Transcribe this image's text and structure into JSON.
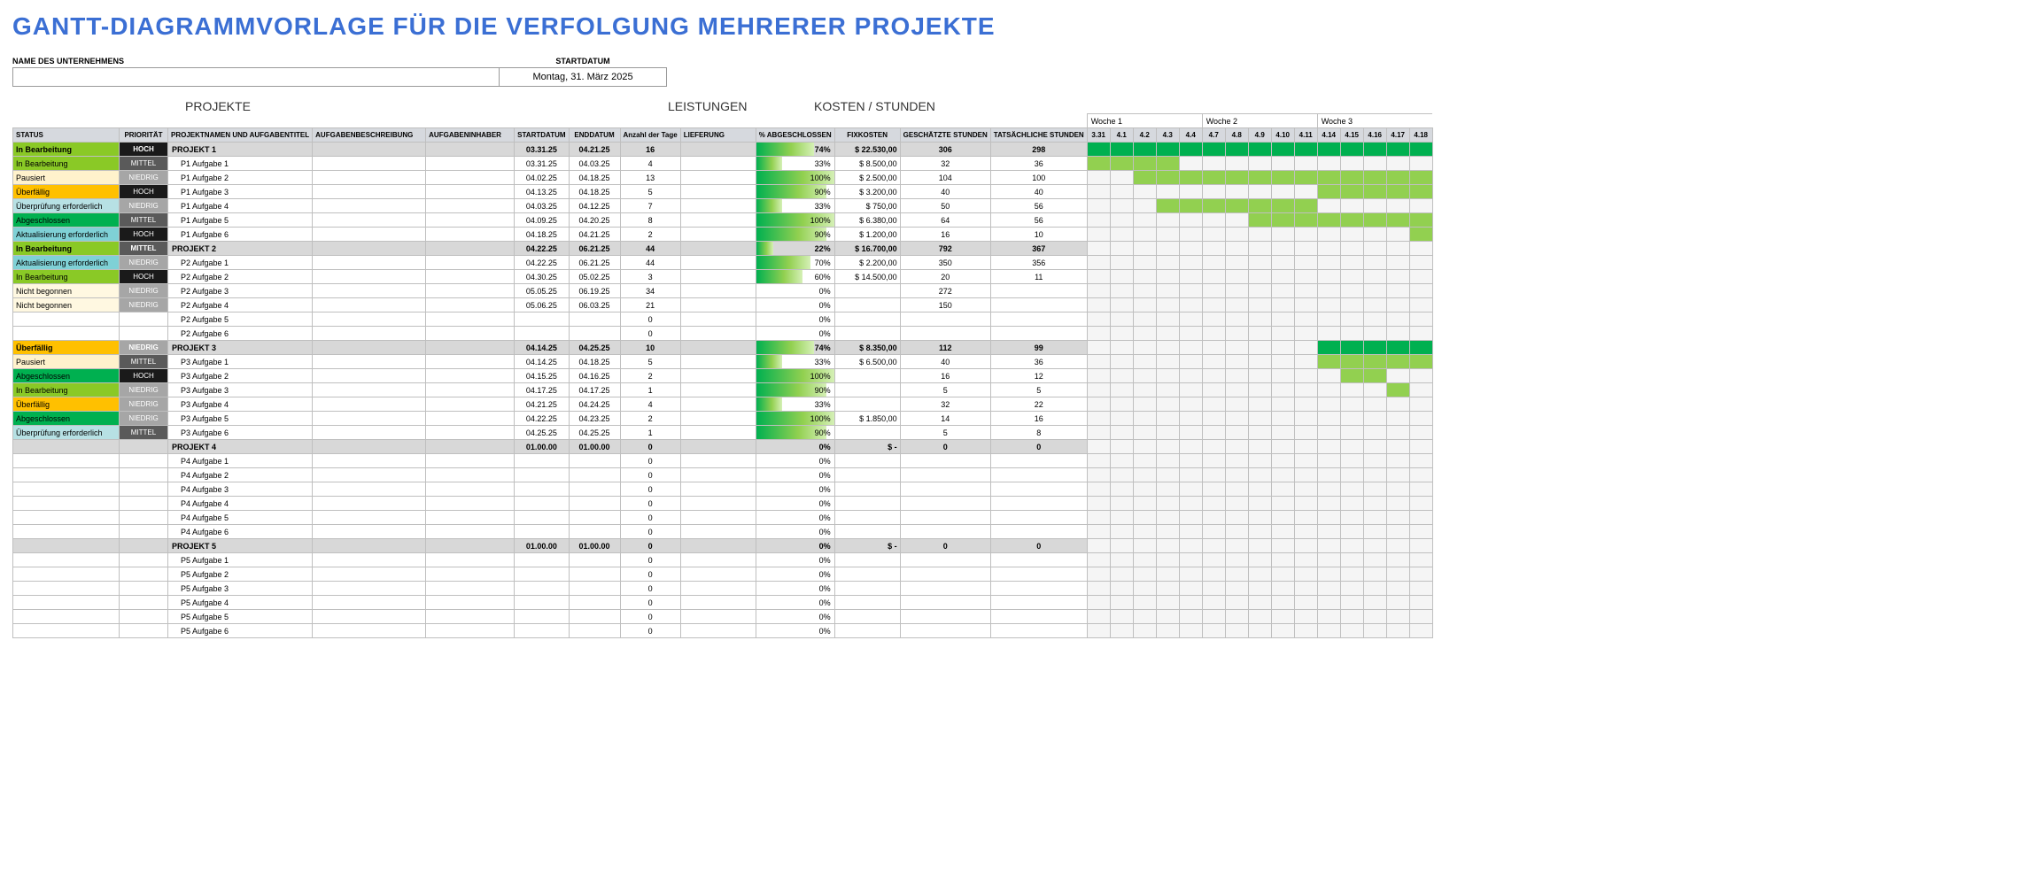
{
  "title": "GANTT-DIAGRAMMVORLAGE FÜR DIE VERFOLGUNG MEHRERER PROJEKTE",
  "company_label": "NAME DES UNTERNEHMENS",
  "startdate_label": "STARTDATUM",
  "startdate_value": "Montag, 31. März 2025",
  "sections": {
    "projects": "PROJEKTE",
    "deliv": "LEISTUNGEN",
    "cost": "KOSTEN / STUNDEN"
  },
  "headers": {
    "status": "STATUS",
    "prio": "PRIORITÄT",
    "title": "PROJEKTNAMEN UND AUFGABENTITEL",
    "desc": "AUFGABENBESCHREIBUNG",
    "owner": "AUFGABENINHABER",
    "start": "STARTDATUM",
    "end": "ENDDATUM",
    "days": "Anzahl der Tage",
    "deliv": "LIEFERUNG",
    "pct": "% ABGESCHLOSSEN",
    "cost": "FIXKOSTEN",
    "est": "GESCHÄTZTE STUNDEN",
    "act": "TATSÄCHLICHE STUNDEN"
  },
  "status_colors": {
    "In Bearbeitung": "#8ac926",
    "Pausiert": "#fff2cc",
    "Überfällig": "#ffc000",
    "Überprüfung erforderlich": "#b7e1e4",
    "Abgeschlossen": "#00b050",
    "Aktualisierung erforderlich": "#7fd1d6",
    "Nicht begonnen": "#fff8e1"
  },
  "prio_colors": {
    "HOCH": "#1a1a1a",
    "MITTEL": "#5a5a5a",
    "NIEDRIG": "#a6a6a6"
  },
  "gantt_palette": {
    "project": "#00b050",
    "task_green": "#92d050",
    "task_dark": "#5fa832"
  },
  "weeks": [
    {
      "label": "Woche 1",
      "days": [
        "3.31",
        "4.1",
        "4.2",
        "4.3",
        "4.4"
      ]
    },
    {
      "label": "Woche 2",
      "days": [
        "4.7",
        "4.8",
        "4.9",
        "4.10",
        "4.11"
      ]
    },
    {
      "label": "Woche 3",
      "days": [
        "4.14",
        "4.15",
        "4.16",
        "4.17",
        "4.18"
      ]
    }
  ],
  "rows": [
    {
      "type": "project",
      "status": "In Bearbeitung",
      "prio": "HOCH",
      "title": "PROJEKT 1",
      "start": "03.31.25",
      "end": "04.21.25",
      "days": "16",
      "pct": 74,
      "cost": "$    22.530,00",
      "est": "306",
      "act": "298",
      "bar": [
        0,
        15,
        "project"
      ]
    },
    {
      "type": "task",
      "status": "In Bearbeitung",
      "prio": "MITTEL",
      "title": "P1 Aufgabe 1",
      "start": "03.31.25",
      "end": "04.03.25",
      "days": "4",
      "pct": 33,
      "cost": "$      8.500,00",
      "est": "32",
      "act": "36",
      "bar": [
        0,
        4,
        "task_green"
      ]
    },
    {
      "type": "task",
      "status": "Pausiert",
      "prio": "NIEDRIG",
      "title": "P1 Aufgabe 2",
      "start": "04.02.25",
      "end": "04.18.25",
      "days": "13",
      "pct": 100,
      "cost": "$      2.500,00",
      "est": "104",
      "act": "100",
      "bar": [
        2,
        15,
        "task_green"
      ]
    },
    {
      "type": "task",
      "status": "Überfällig",
      "prio": "HOCH",
      "title": "P1 Aufgabe 3",
      "start": "04.13.25",
      "end": "04.18.25",
      "days": "5",
      "pct": 90,
      "cost": "$      3.200,00",
      "est": "40",
      "act": "40",
      "bar": [
        10,
        15,
        "task_green"
      ]
    },
    {
      "type": "task",
      "status": "Überprüfung erforderlich",
      "prio": "NIEDRIG",
      "title": "P1 Aufgabe 4",
      "start": "04.03.25",
      "end": "04.12.25",
      "days": "7",
      "pct": 33,
      "cost": "$         750,00",
      "est": "50",
      "act": "56",
      "bar": [
        3,
        10,
        "task_green"
      ]
    },
    {
      "type": "task",
      "status": "Abgeschlossen",
      "prio": "MITTEL",
      "title": "P1 Aufgabe 5",
      "start": "04.09.25",
      "end": "04.20.25",
      "days": "8",
      "pct": 100,
      "cost": "$      6.380,00",
      "est": "64",
      "act": "56",
      "bar": [
        7,
        15,
        "task_green"
      ]
    },
    {
      "type": "task",
      "status": "Aktualisierung erforderlich",
      "prio": "HOCH",
      "title": "P1 Aufgabe 6",
      "start": "04.18.25",
      "end": "04.21.25",
      "days": "2",
      "pct": 90,
      "cost": "$      1.200,00",
      "est": "16",
      "act": "10",
      "bar": [
        14,
        15,
        "task_green"
      ]
    },
    {
      "type": "project",
      "status": "In Bearbeitung",
      "prio": "MITTEL",
      "title": "PROJEKT 2",
      "start": "04.22.25",
      "end": "06.21.25",
      "days": "44",
      "pct": 22,
      "cost": "$    16.700,00",
      "est": "792",
      "act": "367",
      "bar": null
    },
    {
      "type": "task",
      "status": "Aktualisierung erforderlich",
      "prio": "NIEDRIG",
      "title": "P2 Aufgabe 1",
      "start": "04.22.25",
      "end": "06.21.25",
      "days": "44",
      "pct": 70,
      "cost": "$      2.200,00",
      "est": "350",
      "act": "356",
      "bar": null
    },
    {
      "type": "task",
      "status": "In Bearbeitung",
      "prio": "HOCH",
      "title": "P2 Aufgabe 2",
      "start": "04.30.25",
      "end": "05.02.25",
      "days": "3",
      "pct": 60,
      "cost": "$    14.500,00",
      "est": "20",
      "act": "11",
      "bar": null
    },
    {
      "type": "task",
      "status": "Nicht begonnen",
      "prio": "NIEDRIG",
      "title": "P2 Aufgabe 3",
      "start": "05.05.25",
      "end": "06.19.25",
      "days": "34",
      "pct": 0,
      "cost": "",
      "est": "272",
      "act": "",
      "bar": null
    },
    {
      "type": "task",
      "status": "Nicht begonnen",
      "prio": "NIEDRIG",
      "title": "P2 Aufgabe 4",
      "start": "05.06.25",
      "end": "06.03.25",
      "days": "21",
      "pct": 0,
      "cost": "",
      "est": "150",
      "act": "",
      "bar": null
    },
    {
      "type": "task",
      "status": "",
      "prio": "",
      "title": "P2 Aufgabe 5",
      "start": "",
      "end": "",
      "days": "0",
      "pct": 0,
      "cost": "",
      "est": "",
      "act": "",
      "bar": null
    },
    {
      "type": "task",
      "status": "",
      "prio": "",
      "title": "P2 Aufgabe 6",
      "start": "",
      "end": "",
      "days": "0",
      "pct": 0,
      "cost": "",
      "est": "",
      "act": "",
      "bar": null
    },
    {
      "type": "project",
      "status": "Überfällig",
      "prio": "NIEDRIG",
      "title": "PROJEKT 3",
      "start": "04.14.25",
      "end": "04.25.25",
      "days": "10",
      "pct": 74,
      "cost": "$      8.350,00",
      "est": "112",
      "act": "99",
      "bar": [
        10,
        15,
        "project"
      ]
    },
    {
      "type": "task",
      "status": "Pausiert",
      "prio": "MITTEL",
      "title": "P3 Aufgabe 1",
      "start": "04.14.25",
      "end": "04.18.25",
      "days": "5",
      "pct": 33,
      "cost": "$      6.500,00",
      "est": "40",
      "act": "36",
      "bar": [
        10,
        15,
        "task_green"
      ]
    },
    {
      "type": "task",
      "status": "Abgeschlossen",
      "prio": "HOCH",
      "title": "P3 Aufgabe 2",
      "start": "04.15.25",
      "end": "04.16.25",
      "days": "2",
      "pct": 100,
      "cost": "",
      "est": "16",
      "act": "12",
      "bar": [
        11,
        13,
        "task_green"
      ]
    },
    {
      "type": "task",
      "status": "In Bearbeitung",
      "prio": "NIEDRIG",
      "title": "P3 Aufgabe 3",
      "start": "04.17.25",
      "end": "04.17.25",
      "days": "1",
      "pct": 90,
      "cost": "",
      "est": "5",
      "act": "5",
      "bar": [
        13,
        14,
        "task_green"
      ]
    },
    {
      "type": "task",
      "status": "Überfällig",
      "prio": "NIEDRIG",
      "title": "P3 Aufgabe 4",
      "start": "04.21.25",
      "end": "04.24.25",
      "days": "4",
      "pct": 33,
      "cost": "",
      "est": "32",
      "act": "22",
      "bar": null
    },
    {
      "type": "task",
      "status": "Abgeschlossen",
      "prio": "NIEDRIG",
      "title": "P3 Aufgabe 5",
      "start": "04.22.25",
      "end": "04.23.25",
      "days": "2",
      "pct": 100,
      "cost": "$      1.850,00",
      "est": "14",
      "act": "16",
      "bar": null
    },
    {
      "type": "task",
      "status": "Überprüfung erforderlich",
      "prio": "MITTEL",
      "title": "P3 Aufgabe 6",
      "start": "04.25.25",
      "end": "04.25.25",
      "days": "1",
      "pct": 90,
      "cost": "",
      "est": "5",
      "act": "8",
      "bar": null
    },
    {
      "type": "project",
      "status": "",
      "prio": "",
      "title": "PROJEKT 4",
      "start": "01.00.00",
      "end": "01.00.00",
      "days": "0",
      "pct": 0,
      "cost": "$           -",
      "est": "0",
      "act": "0",
      "bar": null
    },
    {
      "type": "task",
      "status": "",
      "prio": "",
      "title": "P4 Aufgabe 1",
      "start": "",
      "end": "",
      "days": "0",
      "pct": 0,
      "cost": "",
      "est": "",
      "act": "",
      "bar": null
    },
    {
      "type": "task",
      "status": "",
      "prio": "",
      "title": "P4 Aufgabe 2",
      "start": "",
      "end": "",
      "days": "0",
      "pct": 0,
      "cost": "",
      "est": "",
      "act": "",
      "bar": null
    },
    {
      "type": "task",
      "status": "",
      "prio": "",
      "title": "P4 Aufgabe 3",
      "start": "",
      "end": "",
      "days": "0",
      "pct": 0,
      "cost": "",
      "est": "",
      "act": "",
      "bar": null
    },
    {
      "type": "task",
      "status": "",
      "prio": "",
      "title": "P4 Aufgabe 4",
      "start": "",
      "end": "",
      "days": "0",
      "pct": 0,
      "cost": "",
      "est": "",
      "act": "",
      "bar": null
    },
    {
      "type": "task",
      "status": "",
      "prio": "",
      "title": "P4 Aufgabe 5",
      "start": "",
      "end": "",
      "days": "0",
      "pct": 0,
      "cost": "",
      "est": "",
      "act": "",
      "bar": null
    },
    {
      "type": "task",
      "status": "",
      "prio": "",
      "title": "P4 Aufgabe 6",
      "start": "",
      "end": "",
      "days": "0",
      "pct": 0,
      "cost": "",
      "est": "",
      "act": "",
      "bar": null
    },
    {
      "type": "project",
      "status": "",
      "prio": "",
      "title": "PROJEKT 5",
      "start": "01.00.00",
      "end": "01.00.00",
      "days": "0",
      "pct": 0,
      "cost": "$           -",
      "est": "0",
      "act": "0",
      "bar": null
    },
    {
      "type": "task",
      "status": "",
      "prio": "",
      "title": "P5 Aufgabe 1",
      "start": "",
      "end": "",
      "days": "0",
      "pct": 0,
      "cost": "",
      "est": "",
      "act": "",
      "bar": null
    },
    {
      "type": "task",
      "status": "",
      "prio": "",
      "title": "P5 Aufgabe 2",
      "start": "",
      "end": "",
      "days": "0",
      "pct": 0,
      "cost": "",
      "est": "",
      "act": "",
      "bar": null
    },
    {
      "type": "task",
      "status": "",
      "prio": "",
      "title": "P5 Aufgabe 3",
      "start": "",
      "end": "",
      "days": "0",
      "pct": 0,
      "cost": "",
      "est": "",
      "act": "",
      "bar": null
    },
    {
      "type": "task",
      "status": "",
      "prio": "",
      "title": "P5 Aufgabe 4",
      "start": "",
      "end": "",
      "days": "0",
      "pct": 0,
      "cost": "",
      "est": "",
      "act": "",
      "bar": null
    },
    {
      "type": "task",
      "status": "",
      "prio": "",
      "title": "P5 Aufgabe 5",
      "start": "",
      "end": "",
      "days": "0",
      "pct": 0,
      "cost": "",
      "est": "",
      "act": "",
      "bar": null
    },
    {
      "type": "task",
      "status": "",
      "prio": "",
      "title": "P5 Aufgabe 6",
      "start": "",
      "end": "",
      "days": "0",
      "pct": 0,
      "cost": "",
      "est": "",
      "act": "",
      "bar": null
    }
  ]
}
